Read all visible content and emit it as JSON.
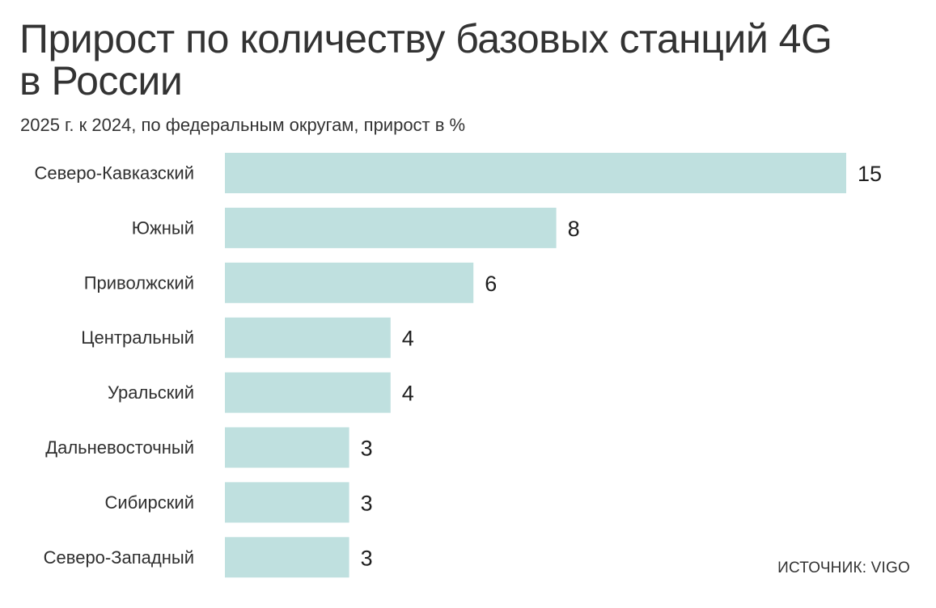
{
  "header": {
    "title_line1": "Прирост по количеству базовых станций 4G",
    "title_line2": "в России",
    "subtitle": "2025 г. к 2024, по федеральным округам, прирост в %"
  },
  "footer": {
    "source": "ИСТОЧНИК: VIGO"
  },
  "colors": {
    "bar": "#bfe0df",
    "text": "#2f2f2f"
  },
  "chart_data": {
    "type": "bar",
    "orientation": "horizontal",
    "title": "Прирост по количеству базовых станций 4G в России",
    "subtitle": "2025 г. к 2024, по федеральным округам, прирост в %",
    "categories": [
      "Северо-Кавказский",
      "Южный",
      "Приволжский",
      "Центральный",
      "Уральский",
      "Дальневосточный",
      "Сибирский",
      "Северо-Западный"
    ],
    "values": [
      15,
      8,
      6,
      4,
      4,
      3,
      3,
      3
    ],
    "xlim": [
      0,
      15
    ],
    "grid": false,
    "legend": false,
    "data_labels": true
  }
}
